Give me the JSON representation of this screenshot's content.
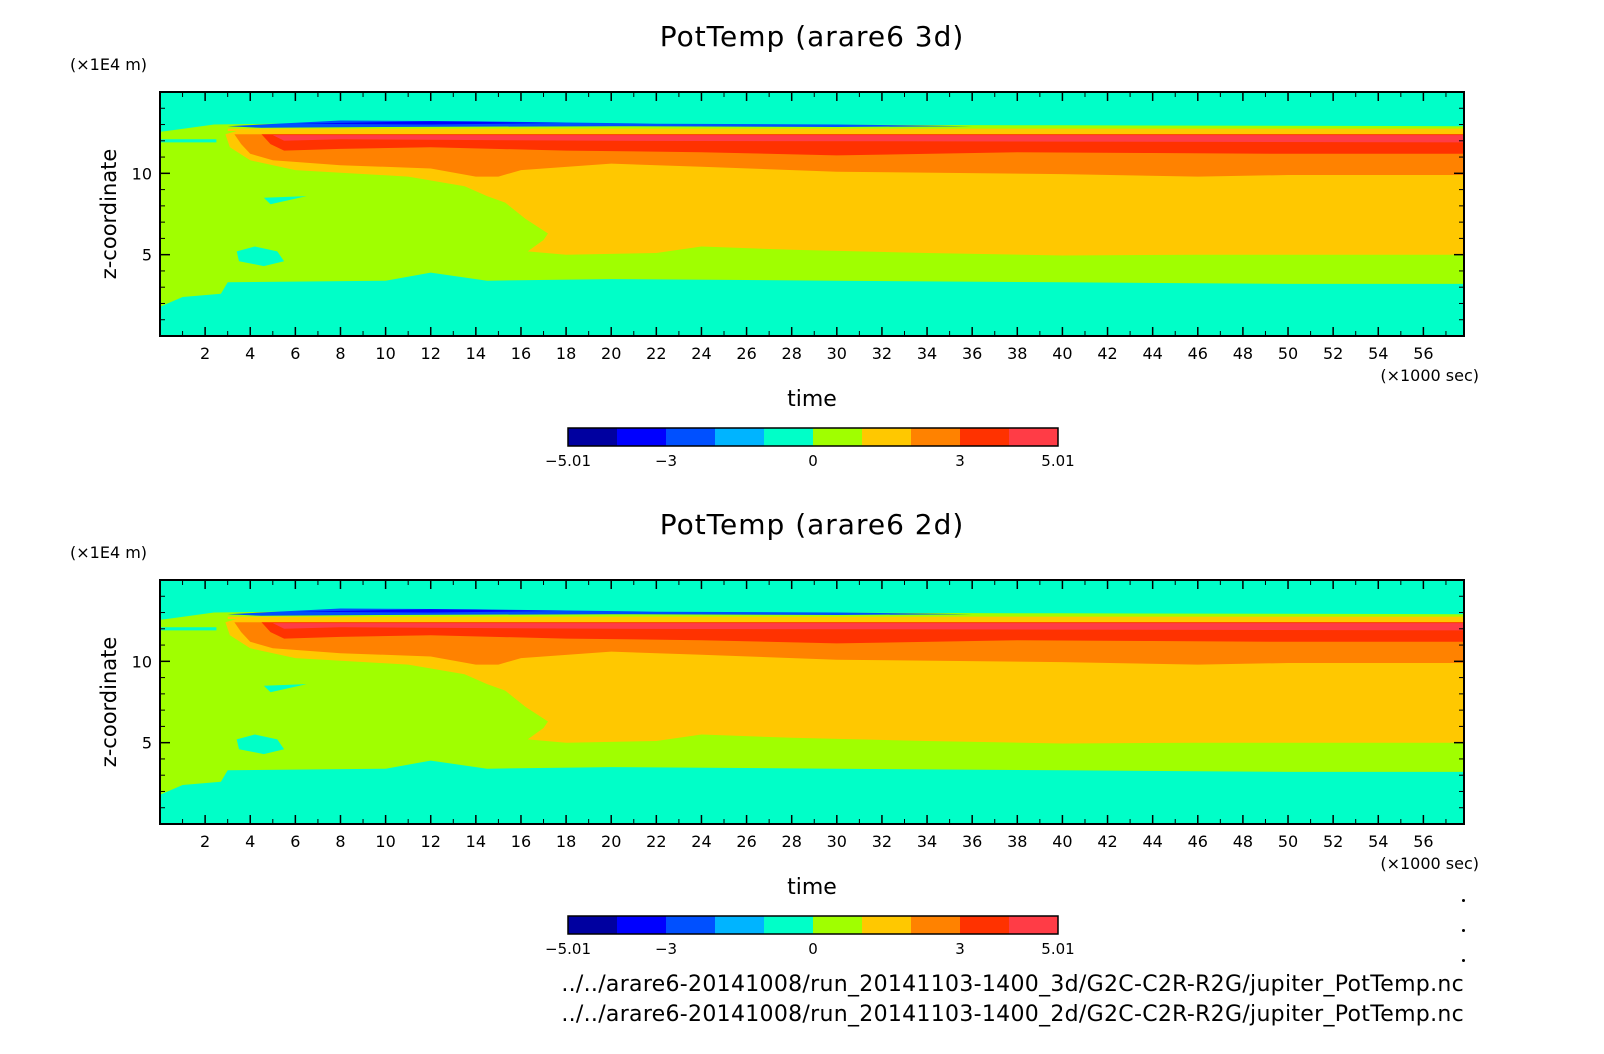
{
  "colors": [
    "#0000a0",
    "#0000ff",
    "#0050ff",
    "#00b4ff",
    "#00ffc8",
    "#a0ff00",
    "#ffc800",
    "#ff8200",
    "#ff3200",
    "#ff3c46"
  ],
  "chart_data": [
    {
      "type": "heatmap",
      "title": "PotTemp (arare6 3d)",
      "xlabel": "time",
      "x_unit": "(×1000 sec)",
      "ylabel": "z-coordinate",
      "y_unit": "(×1E4 m)",
      "xlim": [
        0,
        57.8
      ],
      "ylim": [
        0,
        15
      ],
      "x_ticks": [
        "2",
        "4",
        "6",
        "8",
        "10",
        "12",
        "14",
        "16",
        "18",
        "20",
        "22",
        "24",
        "26",
        "28",
        "30",
        "32",
        "34",
        "36",
        "38",
        "40",
        "42",
        "44",
        "46",
        "48",
        "50",
        "52",
        "54",
        "56"
      ],
      "y_ticks": [
        "5",
        "10"
      ],
      "colorbar": {
        "levels": [
          -5.01,
          -4,
          -3,
          -2,
          -1,
          0,
          1,
          2,
          3,
          4,
          5.01
        ],
        "labels": [
          "-5.01",
          "-3",
          "0",
          "3",
          "5.01"
        ]
      }
    },
    {
      "type": "heatmap",
      "title": "PotTemp (arare6 2d)",
      "xlabel": "time",
      "x_unit": "(×1000 sec)",
      "ylabel": "z-coordinate",
      "y_unit": "(×1E4 m)",
      "xlim": [
        0,
        57.8
      ],
      "ylim": [
        0,
        15
      ],
      "x_ticks": [
        "2",
        "4",
        "6",
        "8",
        "10",
        "12",
        "14",
        "16",
        "18",
        "20",
        "22",
        "24",
        "26",
        "28",
        "30",
        "32",
        "34",
        "36",
        "38",
        "40",
        "42",
        "44",
        "46",
        "48",
        "50",
        "52",
        "54",
        "56"
      ],
      "y_ticks": [
        "5",
        "10"
      ],
      "colorbar": {
        "levels": [
          -5.01,
          -4,
          -3,
          -2,
          -1,
          0,
          1,
          2,
          3,
          4,
          5.01
        ],
        "labels": [
          "-5.01",
          "-3",
          "0",
          "3",
          "5.01"
        ]
      }
    }
  ],
  "footer": {
    "file_3d": "../../arare6-20141008/run_20141103-1400_3d/G2C-C2R-R2G/jupiter_PotTemp.nc",
    "file_2d": "../../arare6-20141008/run_20141103-1400_2d/G2C-C2R-R2G/jupiter_PotTemp.nc"
  }
}
